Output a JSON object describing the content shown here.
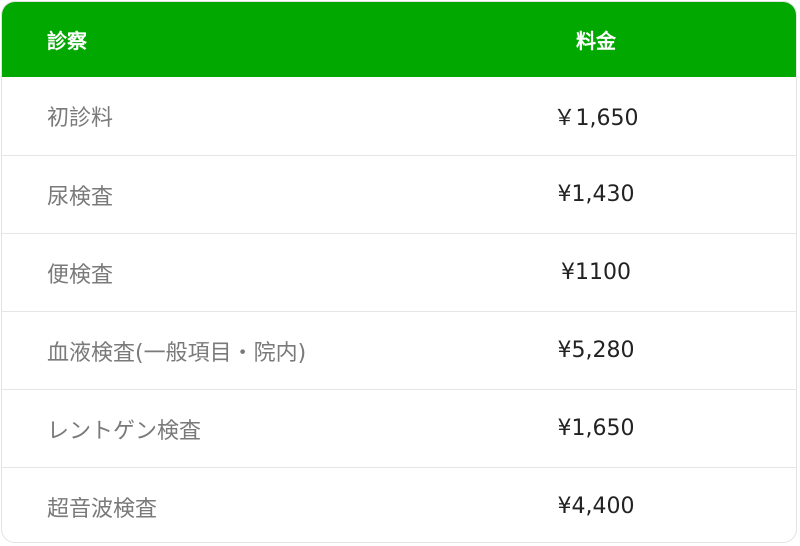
{
  "header": {
    "col1": "診察",
    "col2": "料金"
  },
  "header_color": "#00a800",
  "rows": [
    {
      "name": "初診料",
      "price": "￥1,650"
    },
    {
      "name": "尿検査",
      "price": "¥1,430"
    },
    {
      "name": "便検査",
      "price": "¥1100"
    },
    {
      "name": "血液検査(一般項目・院内)",
      "price": "¥5,280"
    },
    {
      "name": "レントゲン検査",
      "price": "¥1,650"
    },
    {
      "name": "超音波検査",
      "price": "¥4,400"
    }
  ]
}
